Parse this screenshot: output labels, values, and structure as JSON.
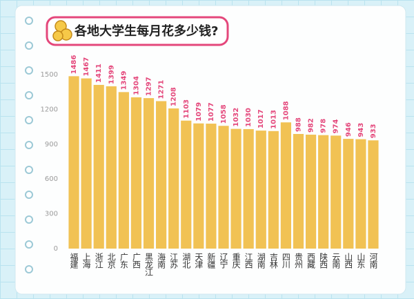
{
  "chart_data": {
    "type": "bar",
    "title": "各地大学生每月花多少钱?",
    "categories": [
      "福建",
      "上海",
      "浙江",
      "北京",
      "广东",
      "广西",
      "黑龙江",
      "海南",
      "江苏",
      "湖北",
      "天津",
      "新疆",
      "辽宁",
      "重庆",
      "江西",
      "湖南",
      "吉林",
      "四川",
      "贵州",
      "西藏",
      "陕西",
      "云南",
      "山西",
      "山东",
      "河南"
    ],
    "values": [
      1486,
      1467,
      1411,
      1399,
      1349,
      1304,
      1297,
      1271,
      1208,
      1103,
      1079,
      1077,
      1058,
      1032,
      1030,
      1017,
      1013,
      1088,
      988,
      982,
      978,
      974,
      946,
      943,
      933
    ],
    "color": "#f1c254",
    "label_color": "#e4477b",
    "ylim": [
      0,
      1500
    ],
    "yticks": [
      0,
      300,
      600,
      900,
      1200,
      1500
    ],
    "grid": false
  }
}
